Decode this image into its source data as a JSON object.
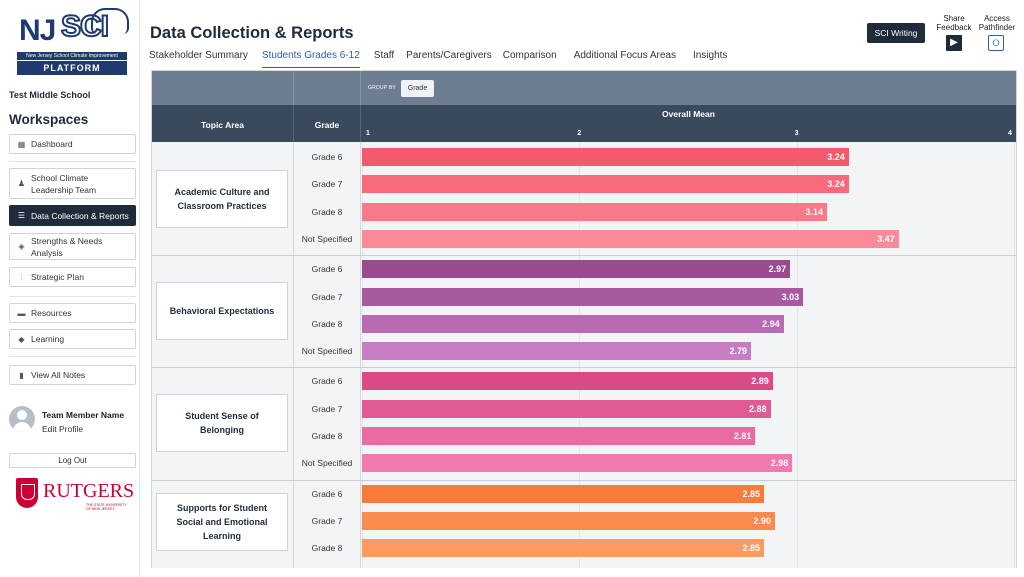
{
  "sidebar": {
    "logo": {
      "brand": "NJ",
      "sci": "SCI",
      "subtitle": "New Jersey School Climate Improvement",
      "platform": "PLATFORM"
    },
    "school_name": "Test Middle School",
    "workspaces_title": "Workspaces",
    "nav": [
      {
        "label": "Dashboard",
        "icon": "dashboard-icon",
        "glyph": "▦"
      },
      {
        "label": "School Climate Leadership Team",
        "icon": "team-icon",
        "glyph": "♟"
      },
      {
        "label": "Data Collection & Reports",
        "icon": "reports-icon",
        "glyph": "☰",
        "active": true
      },
      {
        "label": "Strengths & Needs Analysis",
        "icon": "layers-icon",
        "glyph": "◈"
      },
      {
        "label": "Strategic Plan",
        "icon": "plan-icon",
        "glyph": "⫶"
      },
      {
        "label": "Resources",
        "icon": "folder-icon",
        "glyph": "▬"
      },
      {
        "label": "Learning",
        "icon": "graduation-cap-icon",
        "glyph": "◆"
      },
      {
        "label": "View All Notes",
        "icon": "notes-icon",
        "glyph": "▮"
      }
    ],
    "profile": {
      "name": "Team Member Name",
      "edit": "Edit Profile"
    },
    "logout": "Log Out",
    "rutgers": {
      "name": "RUTGERS",
      "sub": "THE STATE UNIVERSITY OF NEW JERSEY"
    }
  },
  "header": {
    "title": "Data Collection & Reports",
    "tabs": [
      {
        "label": "Stakeholder Summary"
      },
      {
        "label": "Students Grades 6-12",
        "active": true
      },
      {
        "label": "Staff"
      },
      {
        "label": "Parents/Caregivers"
      },
      {
        "label": "Comparison"
      },
      {
        "label": "Additional Focus Areas"
      },
      {
        "label": "Insights"
      }
    ],
    "sci_writing": "SCI Writing",
    "share_feedback": "Share Feedback",
    "access_pathfinder": "Access Pathfinder"
  },
  "table": {
    "group_by_label": "GROUP BY",
    "group_by_value": "Grade",
    "col_topic": "Topic Area",
    "col_grade": "Grade",
    "col_mean": "Overall Mean",
    "axis_ticks": [
      "1",
      "2",
      "3",
      "4"
    ],
    "axis_min": 1,
    "axis_max": 4
  },
  "chart_data": {
    "type": "bar",
    "title": "",
    "xlabel": "Overall Mean",
    "xlim": [
      1,
      4
    ],
    "groups": [
      {
        "topic": "Academic Culture and Classroom Practices",
        "rows": [
          {
            "grade": "Grade 6",
            "value": 3.24,
            "label": "3.24",
            "color": "#f45a6e"
          },
          {
            "grade": "Grade 7",
            "value": 3.24,
            "label": "3.24",
            "color": "#f76a7c"
          },
          {
            "grade": "Grade 8",
            "value": 3.14,
            "label": "3.14",
            "color": "#f87a8a"
          },
          {
            "grade": "Not Specified",
            "value": 3.47,
            "label": "3.47",
            "color": "#fa8a98"
          }
        ]
      },
      {
        "topic": "Behavioral Expectations",
        "rows": [
          {
            "grade": "Grade 6",
            "value": 2.97,
            "label": "2.97",
            "color": "#9b4a90"
          },
          {
            "grade": "Grade 7",
            "value": 3.03,
            "label": "3.03",
            "color": "#a85aa0"
          },
          {
            "grade": "Grade 8",
            "value": 2.94,
            "label": "2.94",
            "color": "#b86bb2"
          },
          {
            "grade": "Not Specified",
            "value": 2.79,
            "label": "2.79",
            "color": "#c77cc3"
          }
        ]
      },
      {
        "topic": "Student Sense of Belonging",
        "rows": [
          {
            "grade": "Grade 6",
            "value": 2.89,
            "label": "2.89",
            "color": "#d94a86"
          },
          {
            "grade": "Grade 7",
            "value": 2.88,
            "label": "2.88",
            "color": "#e25a94"
          },
          {
            "grade": "Grade 8",
            "value": 2.81,
            "label": "2.81",
            "color": "#ea6aa2"
          },
          {
            "grade": "Not Specified",
            "value": 2.98,
            "label": "2.98",
            "color": "#f07ab0"
          }
        ]
      },
      {
        "topic": "Supports for Student Social and Emotional Learning",
        "rows": [
          {
            "grade": "Grade 6",
            "value": 2.85,
            "label": "2.85",
            "color": "#fa7a3c"
          },
          {
            "grade": "Grade 7",
            "value": 2.9,
            "label": "2.90",
            "color": "#fb8a4e"
          },
          {
            "grade": "Grade 8",
            "value": 2.85,
            "label": "2.85",
            "color": "#fc9a62"
          }
        ]
      }
    ]
  }
}
